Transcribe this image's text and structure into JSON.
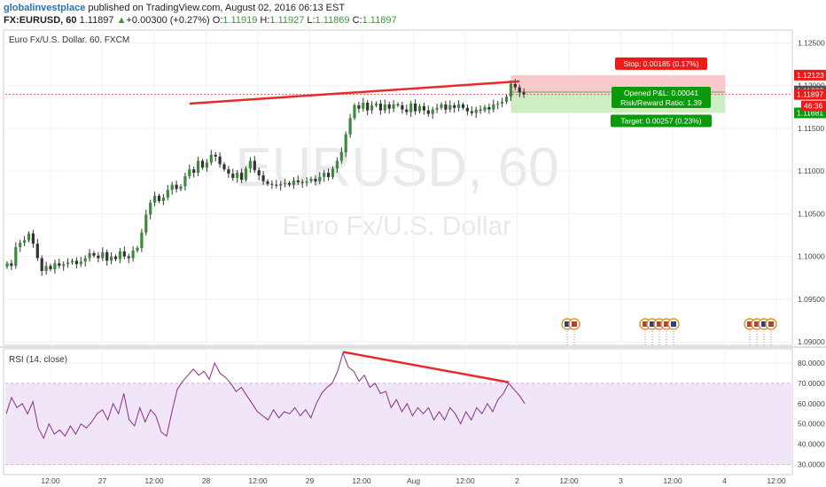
{
  "header": {
    "publisher": "globalinvestplace",
    "published_text": " published on TradingView.com, August 02, 2016 06:13 EST",
    "symbol": "FX:EURUSD, 60",
    "last": "1.11897",
    "change_arrow": "▲",
    "change": "+0.00300 (+0.27%)",
    "o_label": "O:",
    "o_value": "1.11919",
    "h_label": "H:",
    "h_value": "1.11927",
    "l_label": "L:",
    "l_value": "1.11869",
    "c_label": "C:",
    "c_value": "1.11897"
  },
  "main_pane": {
    "title": "Euro Fx/U.S. Dollar, 60, FXCM",
    "watermark_symbol": "EURUSD, 60",
    "watermark_name": "Euro Fx/U.S. Dollar"
  },
  "rsi_pane": {
    "title": "RSI (14, close)"
  },
  "position": {
    "stop_label": "Stop: 0.00185 (0.17%)",
    "pnl_label": "Opened P&L: 0.00041",
    "rr_label": "Risk/Reward Ratio: 1.39",
    "target_label": "Target: 0.00257 (0.23%)"
  },
  "price_tags": {
    "stop": "1.12123",
    "current_upper": "1.11938",
    "current": "1.11897",
    "countdown": "46:36",
    "target": "1.11681"
  },
  "colors": {
    "up_candle": "#3c8a3c",
    "down_candle": "#333333",
    "trendline": "#e82a2a",
    "rsi_line": "#8b2c8b",
    "rsi_band": "#f1e6f8",
    "stop_zone": "#f7cbcc",
    "target_zone": "#cdeec3",
    "tag_red": "#f01919",
    "tag_green": "#0b9a0b",
    "publisher": "#2a6fb8"
  },
  "event_icons": [
    "us-flag-icon",
    "us-flag-icon",
    "eu-flag-icon",
    "globe-icon",
    "calendar-icon",
    "us-flag-icon",
    "us-flag-icon",
    "globe-icon",
    "calendar-icon",
    "us-flag-icon",
    "us-flag-icon"
  ],
  "chart_data": [
    {
      "type": "candlestick",
      "title": "Euro Fx/U.S. Dollar, 60, FXCM",
      "x_ticks": [
        "12:00",
        "27",
        "12:00",
        "28",
        "12:00",
        "29",
        "12:00",
        "Aug",
        "12:00",
        "2",
        "12:00",
        "3",
        "12:00",
        "4",
        "12:00"
      ],
      "y_ticks": [
        "1.12500",
        "1.12000",
        "1.11500",
        "1.11000",
        "1.10500",
        "1.10000",
        "1.09500",
        "1.09000"
      ],
      "ylim": [
        1.0896,
        1.1265
      ],
      "close_series": [
        1.0992,
        1.0989,
        1.1011,
        1.1016,
        1.1019,
        1.1027,
        1.1015,
        1.0998,
        1.0983,
        1.0989,
        1.0985,
        1.0992,
        1.0989,
        1.0991,
        1.0993,
        1.0995,
        1.0991,
        1.0994,
        1.0998,
        1.1004,
        1.1001,
        1.0998,
        1.1005,
        1.0995,
        1.1,
        1.0997,
        1.1006,
        1.1,
        1.0998,
        1.1007,
        1.101,
        1.1028,
        1.1049,
        1.1063,
        1.1071,
        1.1065,
        1.1069,
        1.1078,
        1.1084,
        1.1079,
        1.1082,
        1.1094,
        1.1102,
        1.1098,
        1.1112,
        1.1104,
        1.111,
        1.1119,
        1.1117,
        1.1108,
        1.1102,
        1.1097,
        1.1092,
        1.1098,
        1.109,
        1.1103,
        1.1112,
        1.1101,
        1.1095,
        1.1088,
        1.1085,
        1.1084,
        1.1083,
        1.1085,
        1.1086,
        1.1084,
        1.1089,
        1.1087,
        1.1086,
        1.1088,
        1.1091,
        1.1088,
        1.1093,
        1.1098,
        1.1093,
        1.1103,
        1.1112,
        1.1122,
        1.1143,
        1.1162,
        1.1177,
        1.1173,
        1.118,
        1.1171,
        1.1177,
        1.1179,
        1.1171,
        1.1178,
        1.1173,
        1.1178,
        1.1177,
        1.1172,
        1.1169,
        1.1179,
        1.117,
        1.1176,
        1.1171,
        1.1167,
        1.1172,
        1.1174,
        1.1178,
        1.1172,
        1.1177,
        1.1174,
        1.1178,
        1.1174,
        1.117,
        1.1168,
        1.1172,
        1.1171,
        1.1175,
        1.1172,
        1.1178,
        1.1179,
        1.1181,
        1.1187,
        1.1202,
        1.1198,
        1.1192,
        1.11897
      ],
      "trendline": {
        "from": [
          42,
          1.1179
        ],
        "to": [
          118,
          1.1205
        ]
      },
      "position": {
        "entry": 1.11925,
        "stop": 1.12123,
        "target": 1.11681
      }
    },
    {
      "type": "line",
      "title": "RSI (14, close)",
      "y_ticks": [
        "80.0000",
        "70.0000",
        "60.0000",
        "50.0000",
        "40.0000",
        "30.0000"
      ],
      "ylim": [
        25,
        87
      ],
      "band": [
        30,
        70
      ],
      "values": [
        55,
        63,
        58,
        60,
        55,
        61,
        48,
        43,
        50,
        45,
        47,
        44,
        49,
        45,
        50,
        48,
        51,
        55,
        57,
        52,
        60,
        55,
        65,
        52,
        49,
        58,
        51,
        57,
        54,
        46,
        44,
        56,
        67,
        71,
        74,
        77,
        74,
        76,
        72,
        80,
        75,
        73,
        70,
        66,
        68,
        64,
        60,
        56,
        54,
        52,
        57,
        53,
        56,
        55,
        58,
        54,
        57,
        53,
        60,
        65,
        68,
        70,
        76,
        85,
        78,
        76,
        71,
        74,
        68,
        70,
        65,
        66,
        58,
        62,
        56,
        60,
        54,
        58,
        55,
        58,
        52,
        56,
        52,
        58,
        55,
        50,
        56,
        52,
        58,
        55,
        60,
        56,
        62,
        65,
        70,
        67,
        64,
        60
      ],
      "trendline": {
        "from": [
          63,
          85.5
        ],
        "to": [
          94,
          70.5
        ]
      }
    }
  ]
}
